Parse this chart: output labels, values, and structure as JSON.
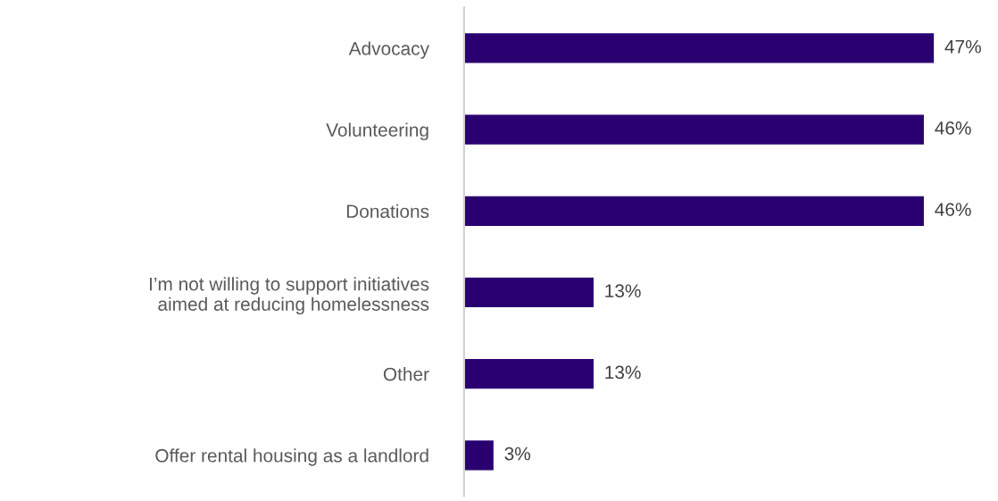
{
  "chart_data": {
    "type": "bar",
    "orientation": "horizontal",
    "categories": [
      "Advocacy",
      "Volunteering",
      "Donations",
      "I’m not willing to support initiatives aimed at reducing homelessness",
      "Other",
      "Offer rental housing as a landlord"
    ],
    "values": [
      47,
      46,
      46,
      13,
      13,
      3
    ],
    "value_labels": [
      "47%",
      "46%",
      "46%",
      "13%",
      "13%",
      "3%"
    ],
    "color": "#2a0070",
    "tick_labels": "y",
    "grid": false,
    "legend": false
  }
}
